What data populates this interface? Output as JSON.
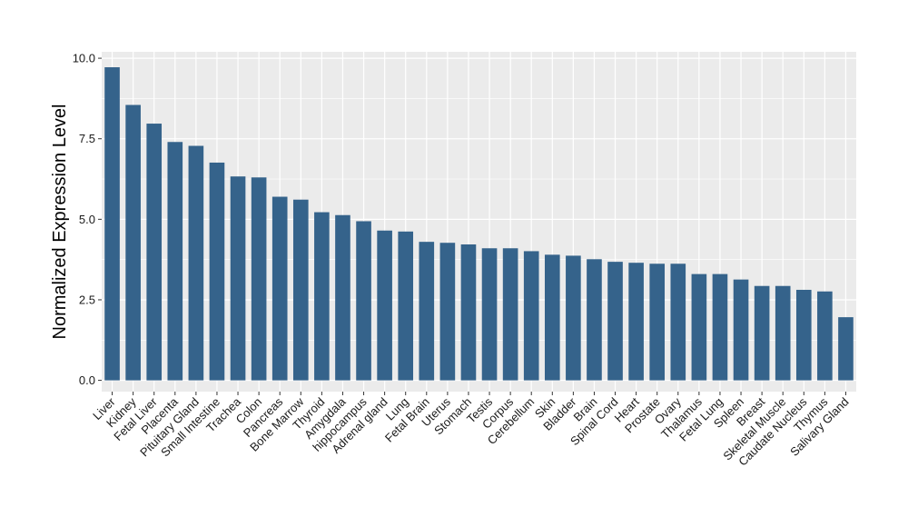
{
  "chart_data": {
    "type": "bar",
    "title": "",
    "xlabel": "",
    "ylabel": "Normalized Expression Level",
    "ylim": [
      -0.35,
      10.2
    ],
    "yticks": [
      0.0,
      2.5,
      5.0,
      7.5,
      10.0
    ],
    "ytick_labels": [
      "0.0",
      "2.5",
      "5.0",
      "7.5",
      "10.0"
    ],
    "grid": true,
    "legend": "none",
    "colors": {
      "bar": "#35638b",
      "panel": "#ebebeb",
      "grid": "#ffffff"
    },
    "categories": [
      "Liver",
      "Kidney",
      "Fetal Liver",
      "Placenta",
      "Pituitary Gland",
      "Small Intestine",
      "Trachea",
      "Colon",
      "Pancreas",
      "Bone Marrow",
      "Thyroid",
      "Amygdala",
      "hippocampus",
      "Adrenal gland",
      "Lung",
      "Fetal Brain",
      "Uterus",
      "Stomach",
      "Testis",
      "Corpus",
      "Cerebellum",
      "Skin",
      "Bladder",
      "Brain",
      "Spinal Cord",
      "Heart",
      "Prostate",
      "Ovary",
      "Thalamus",
      "Fetal Lung",
      "Spleen",
      "Breast",
      "Skeletal Muscle",
      "Caudate Nucleus",
      "Thymus",
      "Salivary Gland"
    ],
    "values": [
      9.72,
      8.55,
      7.97,
      7.4,
      7.28,
      6.76,
      6.33,
      6.3,
      5.7,
      5.61,
      5.22,
      5.13,
      4.94,
      4.65,
      4.62,
      4.3,
      4.27,
      4.22,
      4.1,
      4.1,
      4.01,
      3.9,
      3.87,
      3.76,
      3.68,
      3.65,
      3.62,
      3.62,
      3.3,
      3.3,
      3.13,
      2.93,
      2.93,
      2.81,
      2.76,
      1.96
    ]
  }
}
